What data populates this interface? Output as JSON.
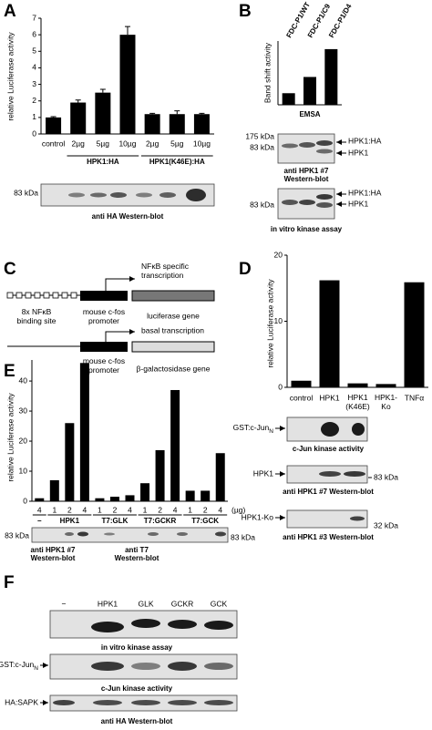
{
  "panel_labels": [
    "A",
    "B",
    "C",
    "D",
    "E",
    "F"
  ],
  "chart_data": [
    {
      "type": "bar",
      "ylabel": "relative Luciferase activity",
      "categories": [
        "control",
        "2µg",
        "5µg",
        "10µg",
        "2µg",
        "5µg",
        "10µg"
      ],
      "values": [
        1.0,
        1.9,
        2.5,
        6.0,
        1.2,
        1.2,
        1.2
      ],
      "errors": [
        0.05,
        0.15,
        0.2,
        0.5,
        0.05,
        0.2,
        0.05
      ],
      "groups": [
        "HPK1:HA",
        "HPK1(K46E):HA"
      ],
      "color": "#000000",
      "ylim": [
        0,
        7
      ],
      "yticks": [
        0,
        1,
        2,
        3,
        4,
        5,
        6,
        7
      ]
    },
    {
      "type": "bar",
      "ylabel": "Band shift activity",
      "xlabel": "EMSA",
      "categories": [
        "FDC-P1/WT",
        "FDC-P1/C9",
        "FDC-P1/D4"
      ],
      "values": [
        1.0,
        2.4,
        4.8
      ],
      "color": "#000000",
      "ylim": [
        0,
        5.5
      ]
    },
    {
      "type": "bar",
      "ylabel": "relative Luciferase activity",
      "categories": [
        "control",
        "HPK1",
        "HPK1\n(K46E)",
        "HPK1-\nKo",
        "TNFα"
      ],
      "values": [
        1.0,
        16.2,
        0.6,
        0.5,
        15.9
      ],
      "color": "#000000",
      "ylim": [
        0,
        20
      ],
      "yticks": [
        0,
        10,
        20
      ]
    },
    {
      "type": "bar",
      "ylabel": "relative Luciferase activity",
      "categories": [
        "4",
        "1",
        "2",
        "4",
        "1",
        "2",
        "4",
        "1",
        "2",
        "4",
        "1",
        "2",
        "4"
      ],
      "values": [
        1,
        7,
        26,
        46,
        1,
        1.5,
        2,
        6,
        17,
        37,
        3.5,
        3.5,
        16
      ],
      "groups": [
        "−",
        "HPK1",
        "T7:GLK",
        "T7:GCKR",
        "T7:GCK"
      ],
      "x_unit": "(µg)",
      "color": "#000000",
      "ylim": [
        0,
        47
      ],
      "yticks": [
        0,
        10,
        20,
        30,
        40
      ]
    }
  ],
  "blots": {
    "A": {
      "kda": "83 kDa",
      "caption": "anti HA Western-blot"
    },
    "B1": {
      "kda": [
        "175 kDa",
        "83 kDa"
      ],
      "bands": [
        "HPK1:HA",
        "HPK1"
      ],
      "caption": "anti HPK1 #7\nWestern-blot"
    },
    "B2": {
      "kda": "83 kDa",
      "bands": [
        "HPK1:HA",
        "HPK1"
      ],
      "caption": "in vitro kinase assay"
    },
    "D1": {
      "label": "GST:c-Jun",
      "sub": "N",
      "caption": "c-Jun kinase activity"
    },
    "D2": {
      "label": "HPK1",
      "kda": "83 kDa",
      "caption": "anti HPK1 #7 Western-blot"
    },
    "D3": {
      "label": "HPK1-Ko",
      "kda": "32 kDa",
      "caption": "anti HPK1 #3 Western-blot"
    },
    "E": {
      "kda": [
        "83 kDa",
        "83 kDa"
      ],
      "captions": [
        "anti HPK1 #7\nWestern-blot",
        "anti T7\nWestern-blot"
      ]
    },
    "F": {
      "lanes": [
        "−",
        "HPK1",
        "GLK",
        "GCKR",
        "GCK"
      ],
      "captions": [
        "in vitro kinase assay",
        "c-Jun kinase activity",
        "anti HA Western-blot"
      ],
      "label2": "GST:c-Jun",
      "sub2": "N",
      "label3": "HA:SAPK"
    }
  },
  "diagram": {
    "row1": [
      "8x NFκB\nbinding site",
      "mouse c-fos\npromoter",
      "luciferase gene"
    ],
    "row1_arrow": "NFκB specific\ntranscription",
    "row2": [
      "mouse c-fos\npromoter",
      "β-galactosidase gene"
    ],
    "row2_arrow": "basal transcription"
  }
}
